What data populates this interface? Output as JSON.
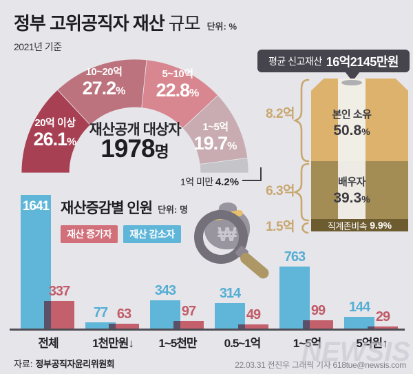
{
  "header": {
    "title_main": "정부 고위공직자 재산",
    "title_sub": "규모",
    "unit": "단위: %",
    "basis": "2021년 기준"
  },
  "symbols": {
    "percent": "%",
    "won": "₩"
  },
  "donut_center": {
    "line1": "재산공개 대상자",
    "number": "1978",
    "suffix": "명"
  },
  "avg_bubble": {
    "prefix": "평균 신고재산",
    "amount": "16억2145만원"
  },
  "section2": {
    "title": "재산증감별 인원",
    "unit": "단위: 명"
  },
  "chart_data": [
    {
      "type": "pie",
      "variant": "semicircle-donut",
      "title": "정부 고위공직자 재산 규모",
      "unit": "%",
      "center_label": "재산공개 대상자 1978명",
      "segments": [
        {
          "label": "20억 이상",
          "value": 26.1,
          "color": "#a84053"
        },
        {
          "label": "10~20억",
          "value": 27.2,
          "color": "#bd737e"
        },
        {
          "label": "5~10억",
          "value": 22.8,
          "color": "#d8868f"
        },
        {
          "label": "1~5억",
          "value": 19.7,
          "color": "#c8acb1"
        },
        {
          "label": "1억 미만",
          "value": 4.2,
          "color": "#c5c4c8"
        }
      ]
    },
    {
      "type": "bar",
      "variant": "stacked-vertical",
      "annotation": "평균 신고재산 16억2145만원",
      "segments": [
        {
          "label": "본인 소유",
          "pct": 50.8,
          "amount": "8.2억",
          "color": "#dcb26d"
        },
        {
          "label": "배우자",
          "pct": 39.3,
          "amount": "6.3억",
          "color": "#a38d55"
        },
        {
          "label": "직계존비속",
          "pct": 9.9,
          "amount": "1.5억",
          "color": "#6e5c31"
        }
      ]
    },
    {
      "type": "bar",
      "title": "재산증감별 인원",
      "unit": "명",
      "categories": [
        "전체",
        "1천만원↓",
        "1~5천만",
        "0.5~1억",
        "1~5억",
        "5억원↑"
      ],
      "series": [
        {
          "name": "재산 증가자",
          "color": "#c4606b",
          "chip_color": "#d1707a",
          "position": "right",
          "values": [
            337,
            63,
            97,
            49,
            99,
            29
          ]
        },
        {
          "name": "재산 감소자",
          "color": "#5fb6d9",
          "chip_color": "#5fb6d9",
          "position": "left",
          "values": [
            1641,
            77,
            343,
            314,
            763,
            144
          ],
          "label_inside_indices": [
            0
          ]
        }
      ],
      "ylim": [
        0,
        1700
      ],
      "grid": false,
      "legend_position": "top-left"
    }
  ],
  "footer": {
    "source_prefix": "자료:",
    "source": "정부공직자윤리위원회",
    "credit": "22.03.31 전진우 그래픽 기자 618tue@newsis.com",
    "watermark": "NEWSIS"
  }
}
